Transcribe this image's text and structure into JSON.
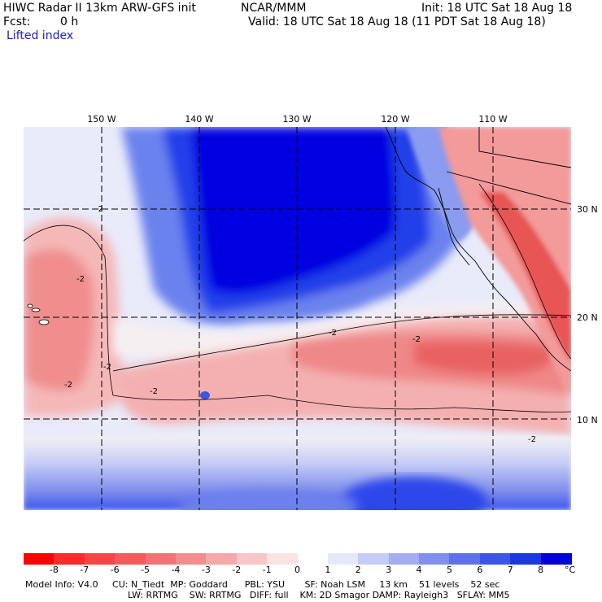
{
  "header": {
    "model_title": "HIWC Radar II 13km ARW-GFS init",
    "org": "NCAR/MMM",
    "init": "Init: 18 UTC Sat 18 Aug 18",
    "fcst_label": "Fcst:",
    "fcst_value": "0 h",
    "valid": "Valid: 18 UTC Sat 18 Aug 18 (11 PDT Sat 18 Aug 18)",
    "field": "Lifted index"
  },
  "map": {
    "lon_labels": [
      "150 W",
      "140 W",
      "130 W",
      "120 W",
      "110 W"
    ],
    "lat_labels": [
      "30 N",
      "20 N",
      "10 N"
    ],
    "contour_label": "-2",
    "colors": {
      "strong_blue": "#0000dd",
      "mid_blue": "#3a56ee",
      "light_blue": "#b8c4f4",
      "near_white": "#f4f1f4",
      "light_red": "#f8c2c2",
      "mid_red": "#f08a8a",
      "red": "#e85c5c"
    }
  },
  "colorbar": {
    "unit": "°C",
    "labels": [
      "-8",
      "-7",
      "-6",
      "-5",
      "-4",
      "-3",
      "-2",
      "-1",
      "0",
      "1",
      "2",
      "3",
      "4",
      "5",
      "6",
      "7",
      "8"
    ],
    "colors": [
      "#ff0000",
      "#ff2a2a",
      "#f74444",
      "#f45c5c",
      "#f07474",
      "#f28e8e",
      "#f5a9a9",
      "#f8c6c6",
      "#fbe3e3",
      "#ffffff",
      "#e5e8fb",
      "#c5ccf5",
      "#a3aef0",
      "#8090ec",
      "#5e72e8",
      "#3d55e4",
      "#1e38e0",
      "#0000d8"
    ]
  },
  "footer": {
    "line1": "Model Info: V4.0     CU: N_Tiedt  MP: Goddard      PBL: YSU       SF: Noah LSM     13 km    51 levels    52 sec",
    "line2": "LW: RRTMG    SW: RRTMG   DIFF: full    KM: 2D Smagor DAMP: Rayleigh3   SFLAY: MM5"
  }
}
